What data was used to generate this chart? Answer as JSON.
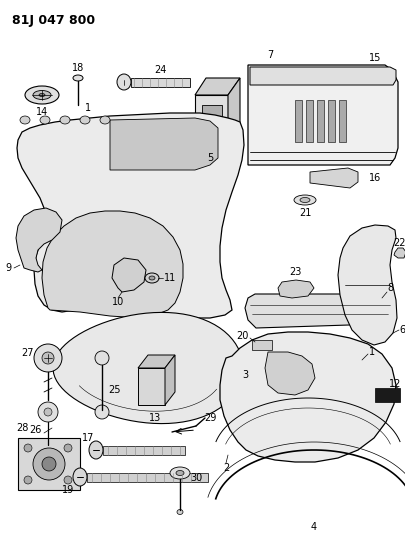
{
  "title": "81J 047 800",
  "bg_color": "#ffffff",
  "line_color": "#000000",
  "figsize": [
    4.06,
    5.33
  ],
  "dpi": 100
}
